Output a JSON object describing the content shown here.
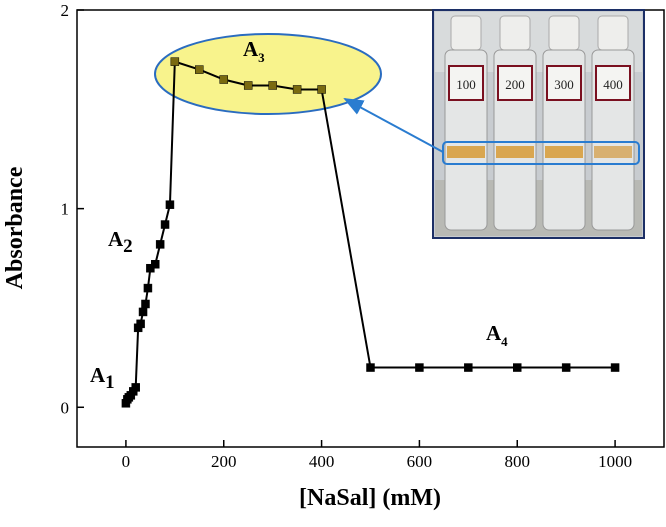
{
  "chart_data": {
    "type": "line",
    "xlabel": "[NaSal] (mM)",
    "ylabel": "Absorbance",
    "x": [
      0,
      3,
      6,
      10,
      15,
      20,
      25,
      30,
      35,
      40,
      45,
      50,
      60,
      70,
      80,
      90,
      100,
      150,
      200,
      250,
      300,
      350,
      400,
      500,
      600,
      700,
      800,
      900,
      1000
    ],
    "series": [
      {
        "color": "#000000",
        "values": [
          0.02,
          0.04,
          0.05,
          0.06,
          0.08,
          0.1,
          0.4,
          0.42,
          0.48,
          0.52,
          0.6,
          0.7,
          0.72,
          0.82,
          0.92,
          1.02,
          1.74,
          1.7,
          1.65,
          1.62,
          1.62,
          1.6,
          1.6,
          0.2,
          0.2,
          0.2,
          0.2,
          0.2,
          0.2
        ]
      }
    ],
    "marker_color": "#7a6a10",
    "xlim": [
      -100,
      1100
    ],
    "ylim": [
      -0.2,
      2
    ],
    "xticks": [
      0,
      200,
      400,
      600,
      800,
      1000
    ],
    "yticks": [
      0,
      1,
      2
    ],
    "annotations": [
      {
        "text": "A",
        "sub": "1"
      },
      {
        "text": "A",
        "sub": "2"
      },
      {
        "text": "A",
        "sub": "3"
      },
      {
        "text": "A",
        "sub": "4"
      }
    ],
    "inset_labels": [
      "100",
      "200",
      "300",
      "400"
    ]
  }
}
